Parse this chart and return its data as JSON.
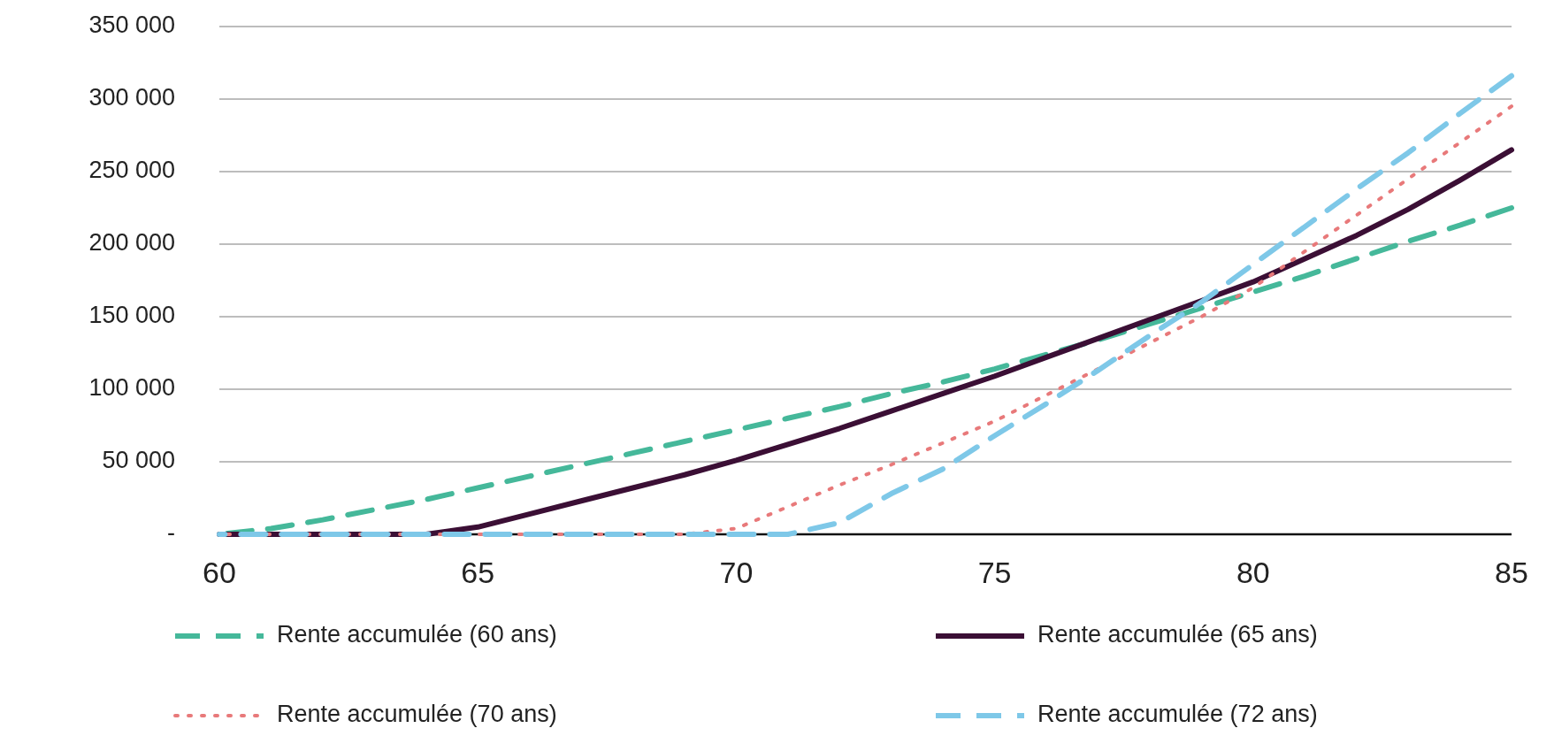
{
  "chart_data": {
    "type": "line",
    "x": [
      60,
      61,
      62,
      63,
      64,
      65,
      66,
      67,
      68,
      69,
      70,
      71,
      72,
      73,
      74,
      75,
      76,
      77,
      78,
      79,
      80,
      81,
      82,
      83,
      84,
      85
    ],
    "xlim": [
      60,
      85
    ],
    "xticks": [
      60,
      65,
      70,
      75,
      80,
      85
    ],
    "ylim": [
      0,
      350000
    ],
    "yticks": [
      {
        "value": 0,
        "label": "-"
      },
      {
        "value": 50000,
        "label": "50 000"
      },
      {
        "value": 100000,
        "label": "100 000"
      },
      {
        "value": 150000,
        "label": "150 000"
      },
      {
        "value": 200000,
        "label": "200 000"
      },
      {
        "value": 250000,
        "label": "250 000"
      },
      {
        "value": 300000,
        "label": "300 000"
      },
      {
        "value": 350000,
        "label": "350 000"
      }
    ],
    "grid": "y",
    "legend": "bottom",
    "marker": "none",
    "series": [
      {
        "name": "Rente accumulée (60 ans)",
        "color": "#45b89a",
        "line_style": "dashed",
        "values": [
          0,
          4000,
          10000,
          17000,
          24000,
          32000,
          40000,
          48000,
          56000,
          64000,
          72000,
          80000,
          88000,
          97000,
          105000,
          114000,
          124000,
          134000,
          145000,
          156000,
          167000,
          178000,
          190000,
          202000,
          213000,
          225000
        ]
      },
      {
        "name": "Rente accumulée (65 ans)",
        "color": "#3b0f35",
        "line_style": "solid",
        "values": [
          0,
          0,
          0,
          0,
          0,
          5000,
          14000,
          23000,
          32000,
          41000,
          51000,
          62000,
          73000,
          85000,
          97000,
          109000,
          122000,
          135000,
          148000,
          161000,
          174000,
          190000,
          206000,
          224000,
          244000,
          265000
        ]
      },
      {
        "name": "Rente accumulée (70 ans)",
        "color": "#e8797a",
        "line_style": "dotted",
        "values": [
          0,
          0,
          0,
          0,
          0,
          0,
          0,
          0,
          0,
          0,
          4000,
          19000,
          34000,
          48000,
          63000,
          78000,
          96000,
          114000,
          132000,
          150000,
          170000,
          195000,
          220000,
          245000,
          270000,
          295000
        ]
      },
      {
        "name": "Rente accumulée (72 ans)",
        "color": "#7ec8e8",
        "line_style": "dashed",
        "values": [
          0,
          0,
          0,
          0,
          0,
          0,
          0,
          0,
          0,
          0,
          0,
          0,
          8000,
          28000,
          45000,
          68000,
          90000,
          113000,
          137000,
          160000,
          186000,
          212000,
          238000,
          263000,
          290000,
          316000
        ]
      }
    ]
  }
}
